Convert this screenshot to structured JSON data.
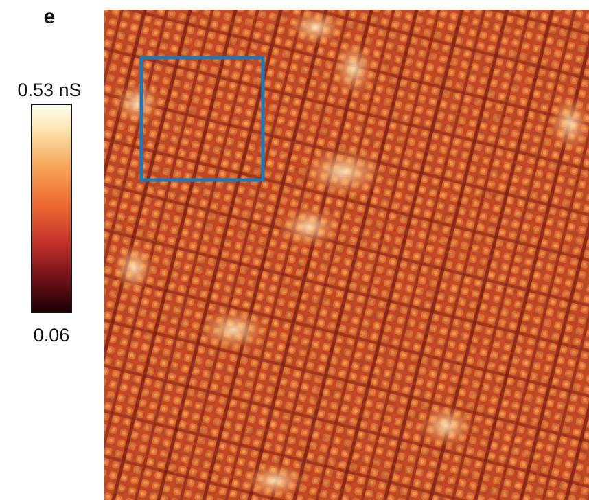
{
  "panel_label": "e",
  "colorbar": {
    "max_label": "0.53 nS",
    "min_label": "0.06"
  }
}
